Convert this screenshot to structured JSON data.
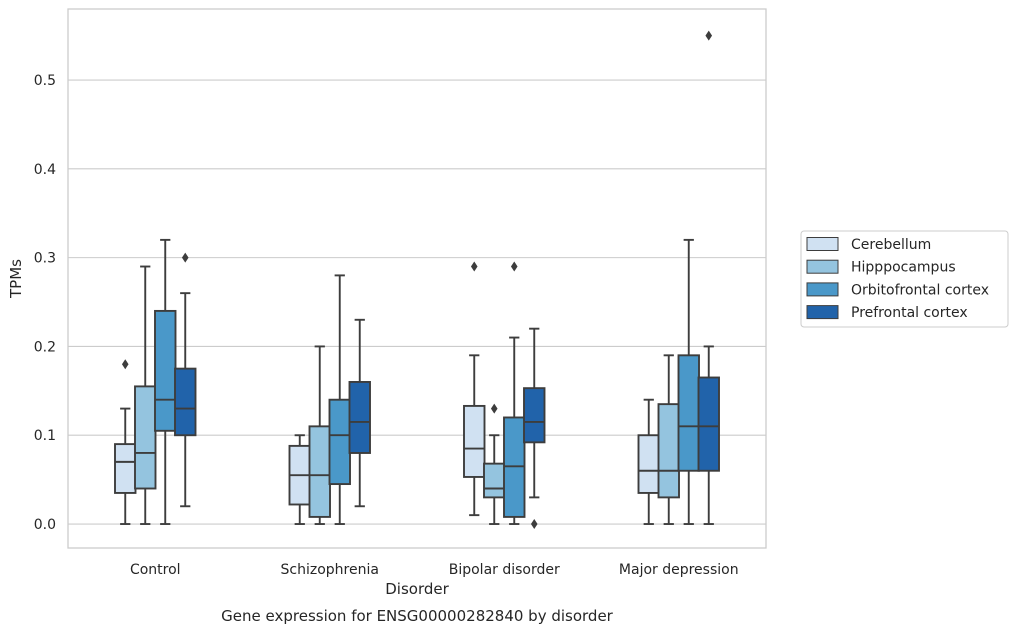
{
  "chart_data": {
    "type": "box",
    "title": "",
    "caption": "Gene expression for ENSG00000282840 by disorder",
    "xlabel": "Disorder",
    "ylabel": "TPMs",
    "ylim": [
      -0.027,
      0.58
    ],
    "yticks": [
      0.0,
      0.1,
      0.2,
      0.3,
      0.4,
      0.5
    ],
    "ytick_labels": [
      "0.0",
      "0.1",
      "0.2",
      "0.3",
      "0.4",
      "0.5"
    ],
    "grid": "horizontal",
    "legend_position": "right",
    "categories": [
      "Control",
      "Schizophrenia",
      "Bipolar disorder",
      "Major depression"
    ],
    "series": [
      {
        "name": "Cerebellum",
        "color": "#d0e1f2",
        "boxes": [
          {
            "whisker_low": 0.0,
            "q1": 0.035,
            "median": 0.07,
            "q3": 0.09,
            "whisker_high": 0.13,
            "outliers": [
              0.18
            ]
          },
          {
            "whisker_low": 0.0,
            "q1": 0.022,
            "median": 0.055,
            "q3": 0.088,
            "whisker_high": 0.1,
            "outliers": []
          },
          {
            "whisker_low": 0.01,
            "q1": 0.053,
            "median": 0.085,
            "q3": 0.133,
            "whisker_high": 0.19,
            "outliers": [
              0.29
            ]
          },
          {
            "whisker_low": 0.0,
            "q1": 0.035,
            "median": 0.06,
            "q3": 0.1,
            "whisker_high": 0.14,
            "outliers": []
          }
        ]
      },
      {
        "name": "Hipppocampus",
        "color": "#94c4df",
        "boxes": [
          {
            "whisker_low": 0.0,
            "q1": 0.04,
            "median": 0.08,
            "q3": 0.155,
            "whisker_high": 0.29,
            "outliers": []
          },
          {
            "whisker_low": 0.0,
            "q1": 0.008,
            "median": 0.055,
            "q3": 0.11,
            "whisker_high": 0.2,
            "outliers": []
          },
          {
            "whisker_low": 0.0,
            "q1": 0.03,
            "median": 0.04,
            "q3": 0.068,
            "whisker_high": 0.1,
            "outliers": [
              0.13
            ]
          },
          {
            "whisker_low": 0.0,
            "q1": 0.03,
            "median": 0.06,
            "q3": 0.135,
            "whisker_high": 0.19,
            "outliers": []
          }
        ]
      },
      {
        "name": "Orbitofrontal cortex",
        "color": "#4a98c9",
        "boxes": [
          {
            "whisker_low": 0.0,
            "q1": 0.105,
            "median": 0.14,
            "q3": 0.24,
            "whisker_high": 0.32,
            "outliers": []
          },
          {
            "whisker_low": 0.0,
            "q1": 0.045,
            "median": 0.1,
            "q3": 0.14,
            "whisker_high": 0.28,
            "outliers": []
          },
          {
            "whisker_low": 0.0,
            "q1": 0.008,
            "median": 0.065,
            "q3": 0.12,
            "whisker_high": 0.21,
            "outliers": [
              0.29
            ]
          },
          {
            "whisker_low": 0.0,
            "q1": 0.06,
            "median": 0.11,
            "q3": 0.19,
            "whisker_high": 0.32,
            "outliers": []
          }
        ]
      },
      {
        "name": "Prefrontal cortex",
        "color": "#2163aa",
        "boxes": [
          {
            "whisker_low": 0.02,
            "q1": 0.1,
            "median": 0.13,
            "q3": 0.175,
            "whisker_high": 0.26,
            "outliers": [
              0.3
            ]
          },
          {
            "whisker_low": 0.02,
            "q1": 0.08,
            "median": 0.115,
            "q3": 0.16,
            "whisker_high": 0.23,
            "outliers": []
          },
          {
            "whisker_low": 0.03,
            "q1": 0.092,
            "median": 0.115,
            "q3": 0.153,
            "whisker_high": 0.22,
            "outliers": [
              0.0
            ]
          },
          {
            "whisker_low": 0.0,
            "q1": 0.06,
            "median": 0.11,
            "q3": 0.165,
            "whisker_high": 0.2,
            "outliers": [
              0.55
            ]
          }
        ]
      }
    ]
  }
}
